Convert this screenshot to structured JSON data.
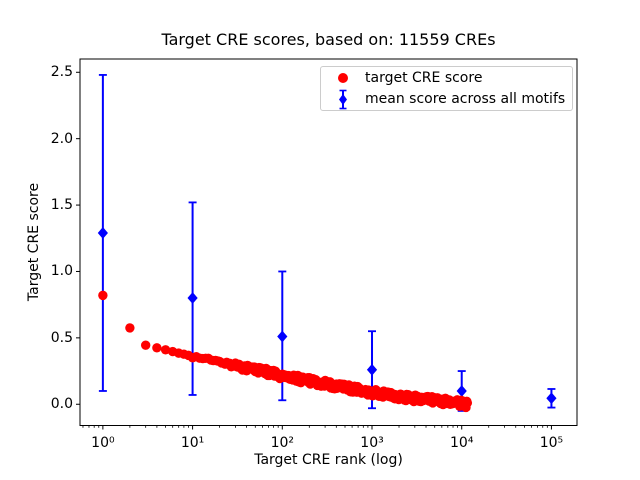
{
  "figure": {
    "title": "Target CRE scores, based on: 11559 CREs",
    "xlabel": "Target CRE rank (log)",
    "ylabel": "Target CRE score"
  },
  "colors": {
    "red": "#ff0000",
    "blue": "#0000ff",
    "axes": "#000000",
    "text": "#000000",
    "legend_border": "#cccccc",
    "background": "#ffffff"
  },
  "legend": {
    "items": [
      {
        "label": "target CRE score",
        "marker": "red-circle",
        "color": "#ff0000"
      },
      {
        "label": "mean score across all motifs",
        "marker": "blue-diamond-errorbar",
        "color": "#0000ff"
      }
    ]
  },
  "chart_data": {
    "type": "scatter",
    "title": "Target CRE scores, based on: 11559 CREs",
    "xlabel": "Target CRE rank (log)",
    "ylabel": "Target CRE score",
    "xscale": "log",
    "xlim_log10": [
      -0.255,
      5.285
    ],
    "ylim": [
      -0.16,
      2.6
    ],
    "x_ticks": [
      1,
      10,
      100,
      1000,
      10000,
      100000
    ],
    "x_tick_labels": [
      "10⁰",
      "10¹",
      "10²",
      "10³",
      "10⁴",
      "10⁵"
    ],
    "y_ticks": [
      0.0,
      0.5,
      1.0,
      1.5,
      2.0,
      2.5
    ],
    "y_tick_labels": [
      "0.0",
      "0.5",
      "1.0",
      "1.5",
      "2.0",
      "2.5"
    ],
    "grid": false,
    "legend_position": "upper-right",
    "series": [
      {
        "name": "target CRE score",
        "type": "scatter",
        "marker": "circle",
        "color": "#ff0000",
        "n_points": 11559,
        "scatter_jitter": 0.026,
        "control_points": [
          [
            1,
            0.82
          ],
          [
            2,
            0.575
          ],
          [
            3,
            0.445
          ],
          [
            4,
            0.425
          ],
          [
            5,
            0.41
          ],
          [
            6,
            0.397
          ],
          [
            7,
            0.385
          ],
          [
            8,
            0.377
          ],
          [
            9,
            0.368
          ],
          [
            10,
            0.358
          ],
          [
            12,
            0.35
          ],
          [
            15,
            0.338
          ],
          [
            20,
            0.318
          ],
          [
            30,
            0.295
          ],
          [
            50,
            0.262
          ],
          [
            70,
            0.24
          ],
          [
            100,
            0.213
          ],
          [
            150,
            0.192
          ],
          [
            200,
            0.176
          ],
          [
            300,
            0.155
          ],
          [
            500,
            0.128
          ],
          [
            700,
            0.108
          ],
          [
            1000,
            0.088
          ],
          [
            1500,
            0.07
          ],
          [
            2000,
            0.06
          ],
          [
            3000,
            0.045
          ],
          [
            5000,
            0.029
          ],
          [
            7000,
            0.018
          ],
          [
            10000,
            0.004
          ],
          [
            11559,
            -0.002
          ]
        ]
      },
      {
        "name": "mean score across all motifs",
        "type": "errorbar",
        "marker": "diamond",
        "color": "#0000ff",
        "points": [
          {
            "x": 1,
            "y": 1.29,
            "lo": 0.1,
            "hi": 2.48
          },
          {
            "x": 10,
            "y": 0.8,
            "lo": 0.07,
            "hi": 1.52
          },
          {
            "x": 100,
            "y": 0.51,
            "lo": 0.03,
            "hi": 1.0
          },
          {
            "x": 1000,
            "y": 0.26,
            "lo": -0.03,
            "hi": 0.55
          },
          {
            "x": 10000,
            "y": 0.1,
            "lo": -0.05,
            "hi": 0.25
          },
          {
            "x": 100000,
            "y": 0.045,
            "lo": -0.025,
            "hi": 0.115
          }
        ]
      }
    ]
  }
}
